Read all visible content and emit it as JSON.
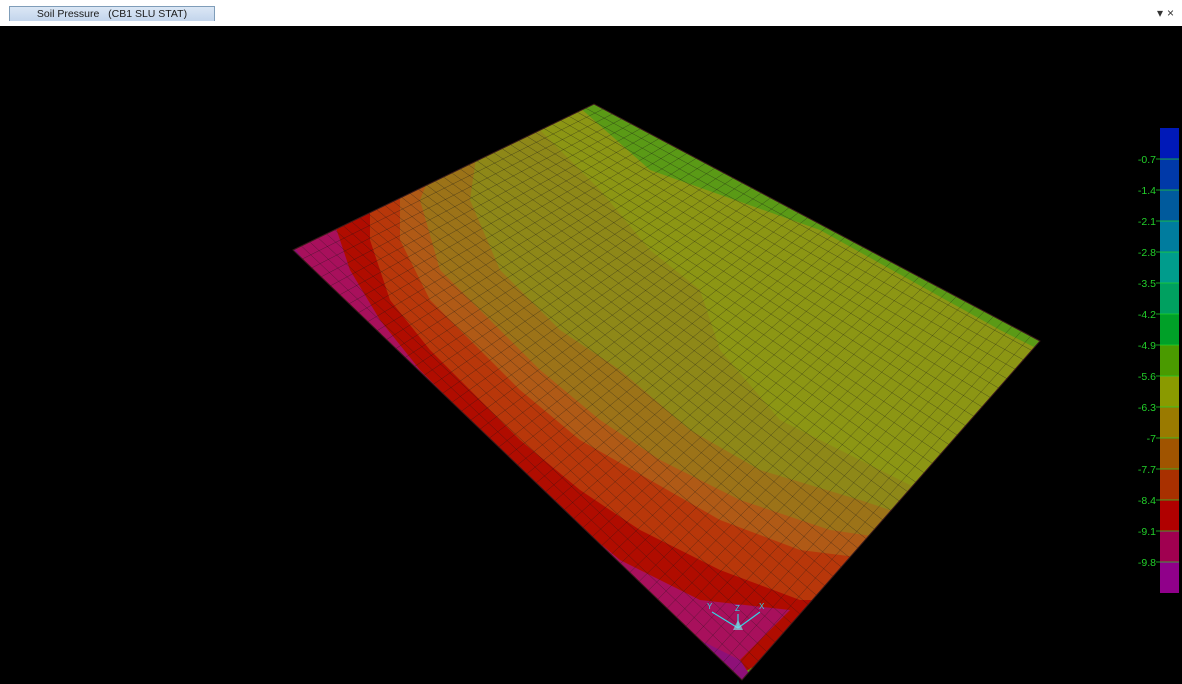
{
  "window": {
    "tab_title": "Soil Pressure   (CB1 SLU STAT)",
    "dropdown_glyph": "▾",
    "close_glyph": "×"
  },
  "legend": {
    "labels": [
      "-0.7",
      "-1.4",
      "-2.1",
      "-2.8",
      "-3.5",
      "-4.2",
      "-4.9",
      "-5.6",
      "-6.3",
      "-7",
      "-7.7",
      "-8.4",
      "-9.1",
      "-9.8"
    ],
    "colors": [
      "#0019b8",
      "#0039a8",
      "#005a9c",
      "#007c9e",
      "#009c8c",
      "#00a060",
      "#00a028",
      "#4a9a00",
      "#8a9a00",
      "#9a7a00",
      "#a05400",
      "#a83000",
      "#b00000",
      "#a00050",
      "#90008a"
    ]
  },
  "axes": {
    "x_label": "X",
    "y_label": "Y",
    "z_label": "Z",
    "color": "#35d6e6"
  },
  "contour_colors": {
    "magenta": "#a8105c",
    "dark_magenta": "#8e1078",
    "red": "#b00c00",
    "red_orange": "#b8370a",
    "orange_brown": "#b05a16",
    "olive_brown": "#9c7318",
    "olive": "#8e8818",
    "yellow_olive": "#8c9614",
    "green": "#5a9a16",
    "mesh_line": "#1a1a1a"
  }
}
